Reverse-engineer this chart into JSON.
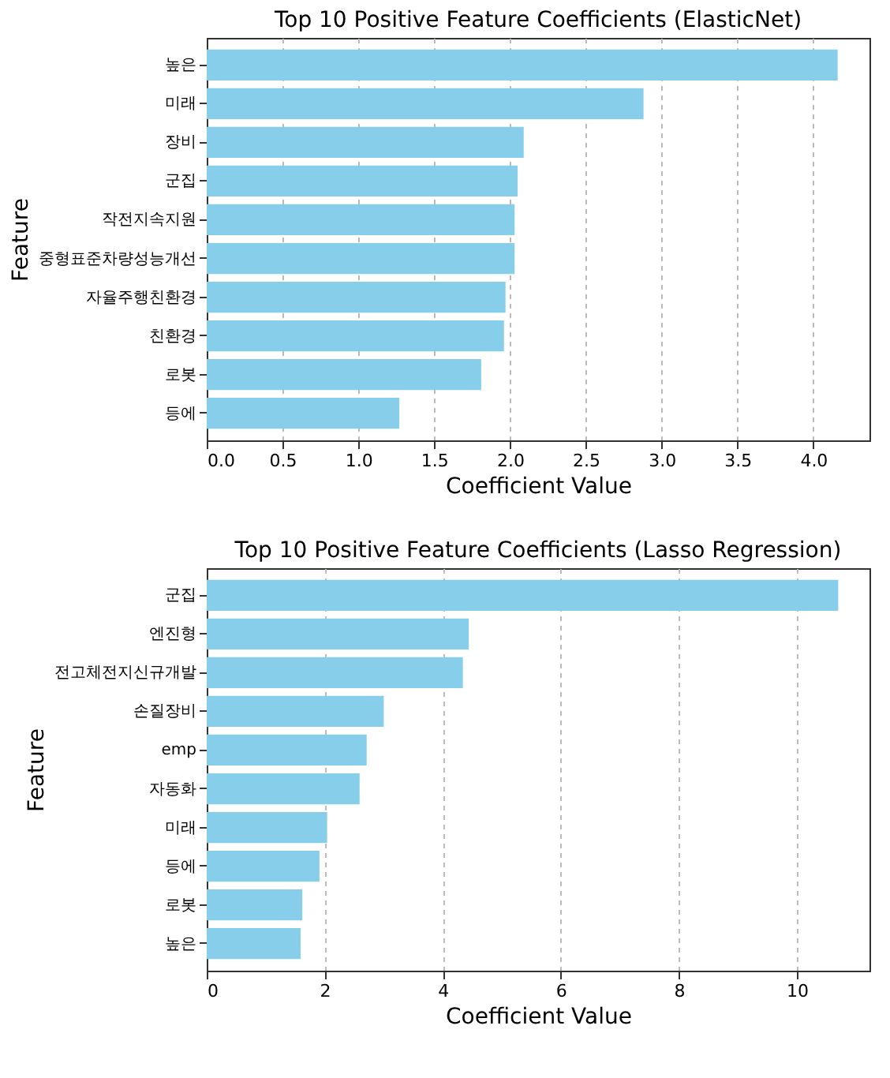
{
  "chart_data": [
    {
      "type": "bar",
      "orientation": "horizontal",
      "title": "Top 10 Positive Feature Coefficients (ElasticNet)",
      "xlabel": "Coefficient Value",
      "ylabel": "Feature",
      "categories": [
        "높은",
        "미래",
        "장비",
        "군집",
        "작전지속지원",
        "중형표준차량성능개선",
        "자율주행친환경",
        "친환경",
        "로봇",
        "등에"
      ],
      "values": [
        4.16,
        2.88,
        2.09,
        2.05,
        2.03,
        2.03,
        1.97,
        1.96,
        1.81,
        1.27
      ],
      "color": "#87ceeb",
      "xlim": [
        0,
        4.37
      ],
      "xticks": [
        {
          "value": 0,
          "label": "0.0"
        },
        0.5,
        {
          "value": 1,
          "label": "1.0"
        },
        1.5,
        {
          "value": 2,
          "label": "2.0"
        },
        2.5,
        {
          "value": 3,
          "label": "3.0"
        },
        3.5,
        {
          "value": 4,
          "label": "4.0"
        }
      ],
      "grid": "x"
    },
    {
      "type": "bar",
      "orientation": "horizontal",
      "title": "Top 10 Positive Feature Coefficients (Lasso Regression)",
      "xlabel": "Coefficient Value",
      "ylabel": "Feature",
      "categories": [
        "군집",
        "엔진형",
        "전고체전지신규개발",
        "손질장비",
        "emp",
        "자동화",
        "미래",
        "등에",
        "로봇",
        "높은"
      ],
      "values": [
        10.7,
        4.44,
        4.34,
        3.0,
        2.71,
        2.59,
        2.04,
        1.91,
        1.62,
        1.59
      ],
      "color": "#87ceeb",
      "xlim": [
        0,
        11.23
      ],
      "xticks": [
        0,
        2,
        4,
        6,
        8,
        10
      ],
      "grid": "x"
    }
  ]
}
